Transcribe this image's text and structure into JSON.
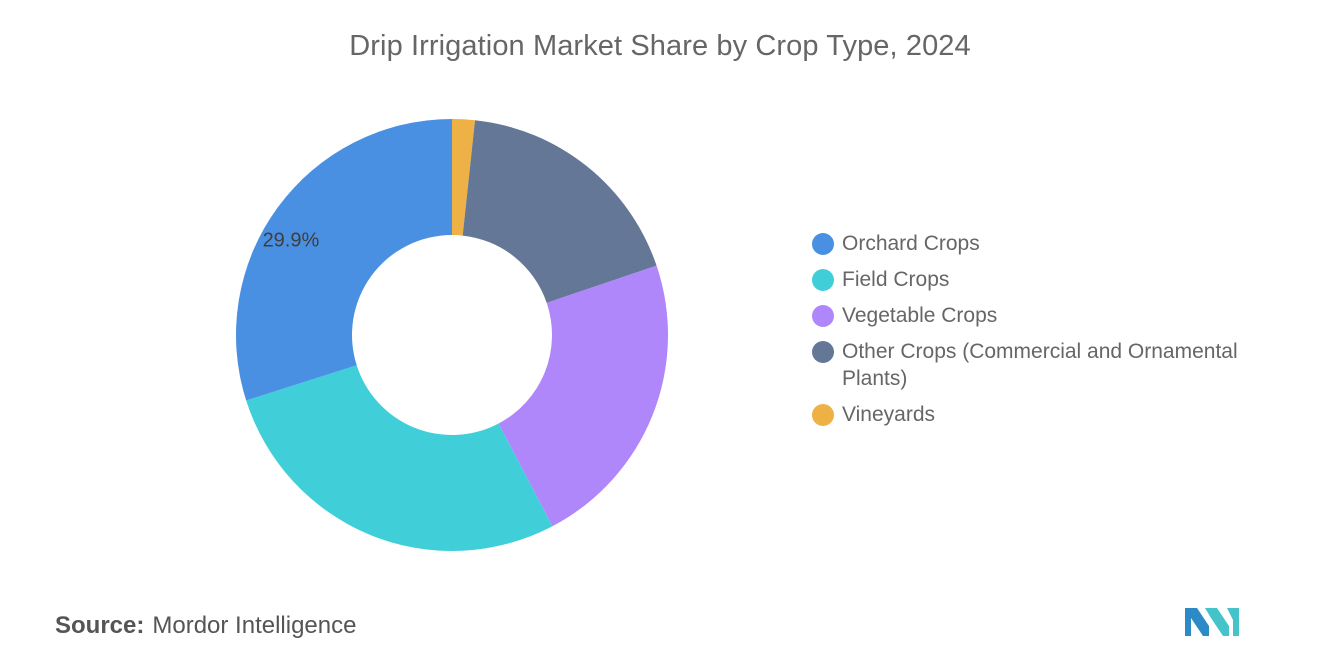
{
  "chart_data": {
    "type": "pie",
    "title": "Drip Irrigation Market Share by Crop Type, 2024",
    "categories": [
      "Orchard Crops",
      "Field Crops",
      "Vegetable Crops",
      "Other Crops (Commercial and Ornamental Plants)",
      "Vineyards"
    ],
    "values": [
      29.9,
      27.8,
      22.5,
      18.1,
      1.7
    ],
    "colors": [
      "#4a90e2",
      "#40cfd9",
      "#b086fb",
      "#657797",
      "#eeb146"
    ],
    "data_labels": [
      {
        "category": "Orchard Crops",
        "text": "29.9%"
      }
    ],
    "legend_position": "right",
    "donut": true
  },
  "source": {
    "label": "Source:",
    "value": "Mordor Intelligence"
  },
  "logo": {
    "icon": "mordor-intelligence-logo-icon",
    "colors": [
      "#2c8bc7",
      "#44c3c9"
    ]
  }
}
